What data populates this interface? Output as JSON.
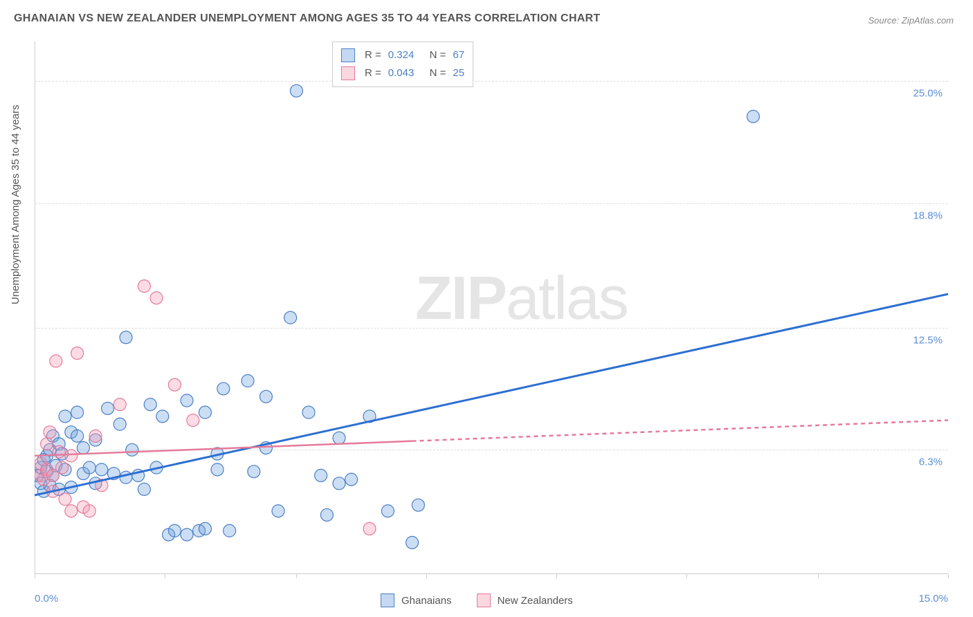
{
  "title": "GHANAIAN VS NEW ZEALANDER UNEMPLOYMENT AMONG AGES 35 TO 44 YEARS CORRELATION CHART",
  "source": "Source: ZipAtlas.com",
  "y_axis_title": "Unemployment Among Ages 35 to 44 years",
  "watermark_bold": "ZIP",
  "watermark_rest": "atlas",
  "chart": {
    "type": "scatter",
    "background_color": "#ffffff",
    "grid_color": "#dddddd",
    "axis_color": "#cccccc",
    "xlim": [
      0,
      15
    ],
    "ylim": [
      0,
      27
    ],
    "x_tick_label_left": "0.0%",
    "x_tick_label_right": "15.0%",
    "x_ticks": [
      0,
      2.14,
      4.29,
      6.43,
      8.57,
      10.71,
      12.86,
      15
    ],
    "y_gridlines": [
      6.3,
      12.5,
      18.8,
      25.0
    ],
    "y_tick_labels": [
      "6.3%",
      "12.5%",
      "18.8%",
      "25.0%"
    ],
    "label_color": "#5b8fd6",
    "label_fontsize": 15,
    "title_fontsize": 16,
    "title_color": "#555555",
    "marker_radius": 9,
    "marker_stroke_width": 1.2,
    "series": [
      {
        "name": "Ghanaians",
        "fill": "rgba(108,160,220,0.35)",
        "stroke": "#4a7fc5",
        "R": "0.324",
        "N": "67",
        "trend": {
          "x1": 0,
          "y1": 4.0,
          "x2": 15,
          "y2": 14.2,
          "stroke": "#2c6fd1",
          "width": 3,
          "dash": "none",
          "extend_x": 6.5
        },
        "points": [
          [
            0.05,
            5.0
          ],
          [
            0.1,
            4.6
          ],
          [
            0.1,
            5.4
          ],
          [
            0.15,
            5.8
          ],
          [
            0.15,
            4.2
          ],
          [
            0.2,
            6.0
          ],
          [
            0.2,
            5.2
          ],
          [
            0.25,
            4.5
          ],
          [
            0.25,
            6.3
          ],
          [
            0.3,
            5.0
          ],
          [
            0.3,
            7.0
          ],
          [
            0.35,
            5.5
          ],
          [
            0.4,
            6.6
          ],
          [
            0.4,
            4.3
          ],
          [
            0.45,
            6.1
          ],
          [
            0.5,
            8.0
          ],
          [
            0.5,
            5.3
          ],
          [
            0.6,
            7.2
          ],
          [
            0.6,
            4.4
          ],
          [
            0.7,
            7.0
          ],
          [
            0.7,
            8.2
          ],
          [
            0.8,
            5.1
          ],
          [
            0.8,
            6.4
          ],
          [
            0.9,
            5.4
          ],
          [
            1.0,
            6.8
          ],
          [
            1.0,
            4.6
          ],
          [
            1.1,
            5.3
          ],
          [
            1.2,
            8.4
          ],
          [
            1.3,
            5.1
          ],
          [
            1.4,
            7.6
          ],
          [
            1.5,
            4.9
          ],
          [
            1.5,
            12.0
          ],
          [
            1.6,
            6.3
          ],
          [
            1.7,
            5.0
          ],
          [
            1.8,
            4.3
          ],
          [
            1.9,
            8.6
          ],
          [
            2.0,
            5.4
          ],
          [
            2.1,
            8.0
          ],
          [
            2.2,
            2.0
          ],
          [
            2.3,
            2.2
          ],
          [
            2.5,
            2.0
          ],
          [
            2.5,
            8.8
          ],
          [
            2.7,
            2.2
          ],
          [
            2.8,
            8.2
          ],
          [
            2.8,
            2.3
          ],
          [
            3.0,
            6.1
          ],
          [
            3.0,
            5.3
          ],
          [
            3.1,
            9.4
          ],
          [
            3.2,
            2.2
          ],
          [
            3.5,
            9.8
          ],
          [
            3.6,
            5.2
          ],
          [
            3.8,
            6.4
          ],
          [
            3.8,
            9.0
          ],
          [
            4.0,
            3.2
          ],
          [
            4.2,
            13.0
          ],
          [
            4.3,
            24.5
          ],
          [
            4.5,
            8.2
          ],
          [
            4.7,
            5.0
          ],
          [
            4.8,
            3.0
          ],
          [
            5.0,
            4.6
          ],
          [
            5.0,
            6.9
          ],
          [
            5.2,
            4.8
          ],
          [
            5.5,
            8.0
          ],
          [
            5.8,
            3.2
          ],
          [
            6.2,
            1.6
          ],
          [
            6.3,
            3.5
          ],
          [
            11.8,
            23.2
          ]
        ]
      },
      {
        "name": "New Zealanders",
        "fill": "rgba(244,154,178,0.35)",
        "stroke": "#e57a9a",
        "R": "0.043",
        "N": "25",
        "trend": {
          "x1": 0,
          "y1": 6.0,
          "x2": 15,
          "y2": 7.8,
          "stroke": "#e57a9a",
          "width": 2.5,
          "dash": "6,5",
          "extend_x": 6.2
        },
        "points": [
          [
            0.1,
            5.0
          ],
          [
            0.1,
            5.6
          ],
          [
            0.15,
            4.8
          ],
          [
            0.2,
            5.3
          ],
          [
            0.2,
            6.6
          ],
          [
            0.25,
            7.2
          ],
          [
            0.3,
            5.0
          ],
          [
            0.3,
            4.2
          ],
          [
            0.35,
            10.8
          ],
          [
            0.4,
            6.2
          ],
          [
            0.45,
            5.4
          ],
          [
            0.5,
            3.8
          ],
          [
            0.6,
            6.0
          ],
          [
            0.6,
            3.2
          ],
          [
            0.7,
            11.2
          ],
          [
            0.8,
            3.4
          ],
          [
            0.9,
            3.2
          ],
          [
            1.0,
            7.0
          ],
          [
            1.1,
            4.5
          ],
          [
            1.4,
            8.6
          ],
          [
            1.8,
            14.6
          ],
          [
            2.0,
            14.0
          ],
          [
            2.3,
            9.6
          ],
          [
            2.6,
            7.8
          ],
          [
            5.5,
            2.3
          ]
        ]
      }
    ],
    "legend_bottom": [
      {
        "label": "Ghanaians",
        "swatch": "blue"
      },
      {
        "label": "New Zealanders",
        "swatch": "pink"
      }
    ]
  }
}
